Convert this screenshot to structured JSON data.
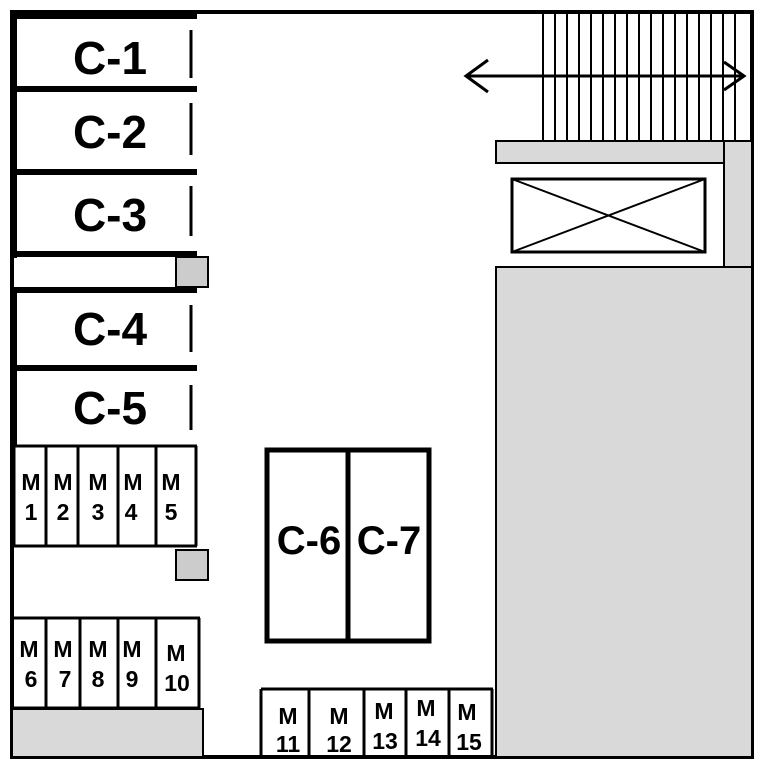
{
  "car_spaces": {
    "c1": "C-1",
    "c2": "C-2",
    "c3": "C-3",
    "c4": "C-4",
    "c5": "C-5",
    "c6": "C-6",
    "c7": "C-7"
  },
  "moto_spaces": [
    {
      "top": "M",
      "bottom": "1"
    },
    {
      "top": "M",
      "bottom": "2"
    },
    {
      "top": "M",
      "bottom": "3"
    },
    {
      "top": "M",
      "bottom": "4"
    },
    {
      "top": "M",
      "bottom": "5"
    },
    {
      "top": "M",
      "bottom": "6"
    },
    {
      "top": "M",
      "bottom": "7"
    },
    {
      "top": "M",
      "bottom": "8"
    },
    {
      "top": "M",
      "bottom": "9"
    },
    {
      "top": "M",
      "bottom": "10"
    },
    {
      "top": "M",
      "bottom": "11"
    },
    {
      "top": "M",
      "bottom": "12"
    },
    {
      "top": "M",
      "bottom": "13"
    },
    {
      "top": "M",
      "bottom": "14"
    },
    {
      "top": "M",
      "bottom": "15"
    }
  ],
  "colors": {
    "line": "#000000",
    "building_fill": "#d9d9d9",
    "background": "#ffffff"
  }
}
